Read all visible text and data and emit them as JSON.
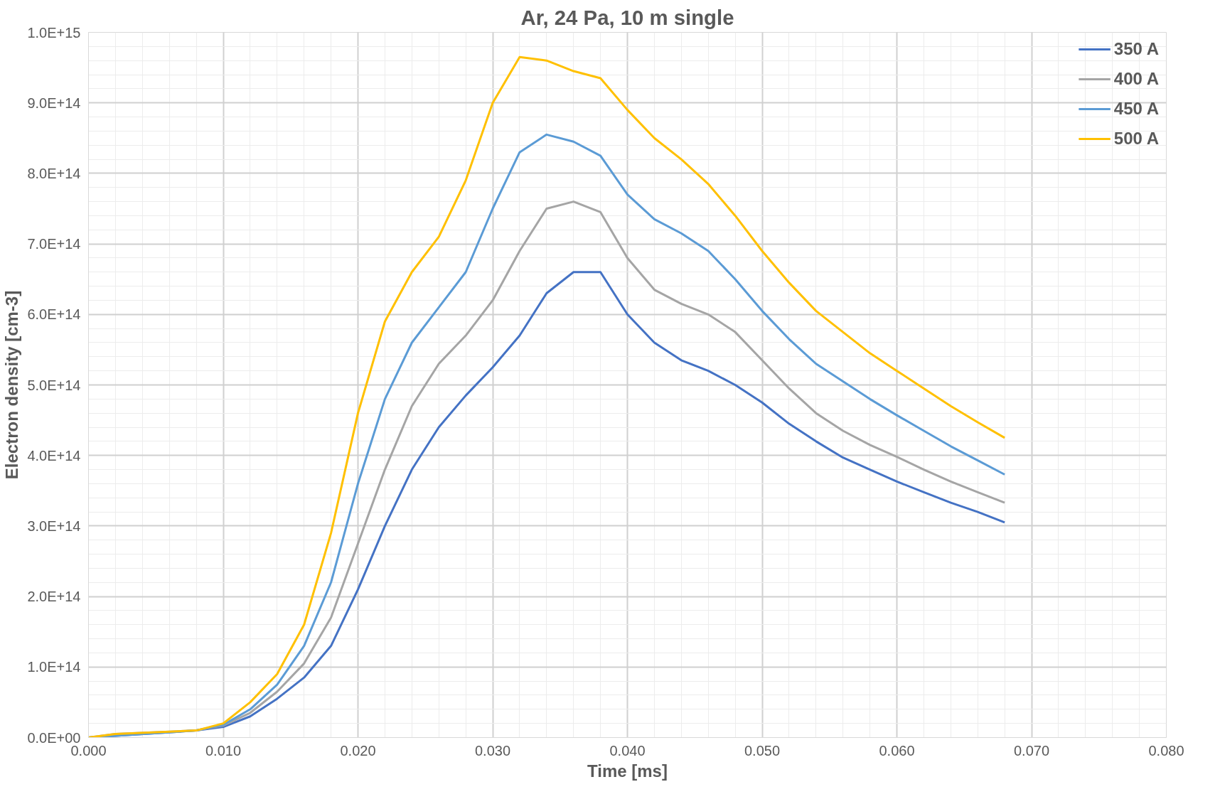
{
  "chart_data": {
    "type": "line",
    "title": "Ar, 24 Pa, 10 m single",
    "xlabel": "Time [ms]",
    "ylabel": "Electron density [cm-3]",
    "x": [
      0,
      0.002,
      0.008,
      0.01,
      0.012,
      0.014,
      0.016,
      0.018,
      0.02,
      0.022,
      0.024,
      0.026,
      0.028,
      0.03,
      0.032,
      0.034,
      0.036,
      0.038,
      0.04,
      0.042,
      0.044,
      0.046,
      0.048,
      0.05,
      0.052,
      0.054,
      0.056,
      0.058,
      0.06,
      0.062,
      0.064,
      0.066,
      0.068
    ],
    "series": [
      {
        "name": "350 A",
        "color": "#4472c4",
        "values": [
          0,
          null,
          10000000000000.0,
          15000000000000.0,
          30000000000000.0,
          55000000000000.0,
          85000000000000.0,
          130000000000000.0,
          210000000000000.0,
          300000000000000.0,
          380000000000000.0,
          440000000000000.0,
          485000000000000.0,
          525000000000000.0,
          570000000000000.0,
          630000000000000.0,
          660000000000000.0,
          660000000000000.0,
          600000000000000.0,
          560000000000000.0,
          535000000000000.0,
          520000000000000.0,
          500000000000000.0,
          475000000000000.0,
          445000000000000.0,
          420000000000000.0,
          397000000000000.0,
          380000000000000.0,
          363000000000000.0,
          348000000000000.0,
          333000000000000.0,
          320000000000000.0,
          305000000000000.0
        ]
      },
      {
        "name": "400 A",
        "color": "#a5a5a5",
        "values": [
          0,
          5000000000000.0,
          10000000000000.0,
          17000000000000.0,
          35000000000000.0,
          65000000000000.0,
          105000000000000.0,
          170000000000000.0,
          275000000000000.0,
          380000000000000.0,
          470000000000000.0,
          530000000000000.0,
          570000000000000.0,
          620000000000000.0,
          690000000000000.0,
          750000000000000.0,
          760000000000000.0,
          745000000000000.0,
          680000000000000.0,
          635000000000000.0,
          615000000000000.0,
          600000000000000.0,
          575000000000000.0,
          535000000000000.0,
          495000000000000.0,
          460000000000000.0,
          435000000000000.0,
          415000000000000.0,
          398000000000000.0,
          380000000000000.0,
          363000000000000.0,
          348000000000000.0,
          333000000000000.0
        ]
      },
      {
        "name": "450 A",
        "color": "#5b9bd5",
        "values": [
          0,
          null,
          10000000000000.0,
          18000000000000.0,
          40000000000000.0,
          75000000000000.0,
          130000000000000.0,
          220000000000000.0,
          360000000000000.0,
          480000000000000.0,
          560000000000000.0,
          610000000000000.0,
          660000000000000.0,
          750000000000000.0,
          830000000000000.0,
          855000000000000.0,
          845000000000000.0,
          825000000000000.0,
          770000000000000.0,
          735000000000000.0,
          715000000000000.0,
          690000000000000.0,
          650000000000000.0,
          605000000000000.0,
          565000000000000.0,
          530000000000000.0,
          505000000000000.0,
          480000000000000.0,
          457000000000000.0,
          435000000000000.0,
          413000000000000.0,
          393000000000000.0,
          373000000000000.0
        ]
      },
      {
        "name": "500 A",
        "color": "#ffc000",
        "values": [
          0,
          5000000000000.0,
          10000000000000.0,
          20000000000000.0,
          50000000000000.0,
          90000000000000.0,
          160000000000000.0,
          290000000000000.0,
          460000000000000.0,
          590000000000000.0,
          660000000000000.0,
          710000000000000.0,
          790000000000000.0,
          900000000000000.0,
          965000000000000.0,
          960000000000000.0,
          945000000000000.0,
          935000000000000.0,
          890000000000000.0,
          850000000000000.0,
          820000000000000.0,
          785000000000000.0,
          740000000000000.0,
          690000000000000.0,
          645000000000000.0,
          605000000000000.0,
          575000000000000.0,
          545000000000000.0,
          520000000000000.0,
          495000000000000.0,
          470000000000000.0,
          447000000000000.0,
          425000000000000.0
        ]
      }
    ],
    "xlim": [
      0,
      0.08
    ],
    "xticks": [
      {
        "value": 0,
        "label": "0.000"
      },
      {
        "value": 0.01,
        "label": "0.010"
      },
      {
        "value": 0.02,
        "label": "0.020"
      },
      {
        "value": 0.03,
        "label": "0.030"
      },
      {
        "value": 0.04,
        "label": "0.040"
      },
      {
        "value": 0.05,
        "label": "0.050"
      },
      {
        "value": 0.06,
        "label": "0.060"
      },
      {
        "value": 0.07,
        "label": "0.070"
      },
      {
        "value": 0.08,
        "label": "0.080"
      }
    ],
    "ylim": [
      0,
      1000000000000000.0
    ],
    "yticks": [
      {
        "value": 0,
        "label": "0.0E+00"
      },
      {
        "value": 100000000000000.0,
        "label": "1.0E+14"
      },
      {
        "value": 200000000000000.0,
        "label": "2.0E+14"
      },
      {
        "value": 300000000000000.0,
        "label": "3.0E+14"
      },
      {
        "value": 400000000000000.0,
        "label": "4.0E+14"
      },
      {
        "value": 500000000000000.0,
        "label": "5.0E+14"
      },
      {
        "value": 600000000000000.0,
        "label": "6.0E+14"
      },
      {
        "value": 700000000000000.0,
        "label": "7.0E+14"
      },
      {
        "value": 800000000000000.0,
        "label": "8.0E+14"
      },
      {
        "value": 900000000000000.0,
        "label": "9.0E+14"
      },
      {
        "value": 1000000000000000.0,
        "label": "1.0E+15"
      }
    ],
    "grid": true,
    "legend": "top right"
  }
}
